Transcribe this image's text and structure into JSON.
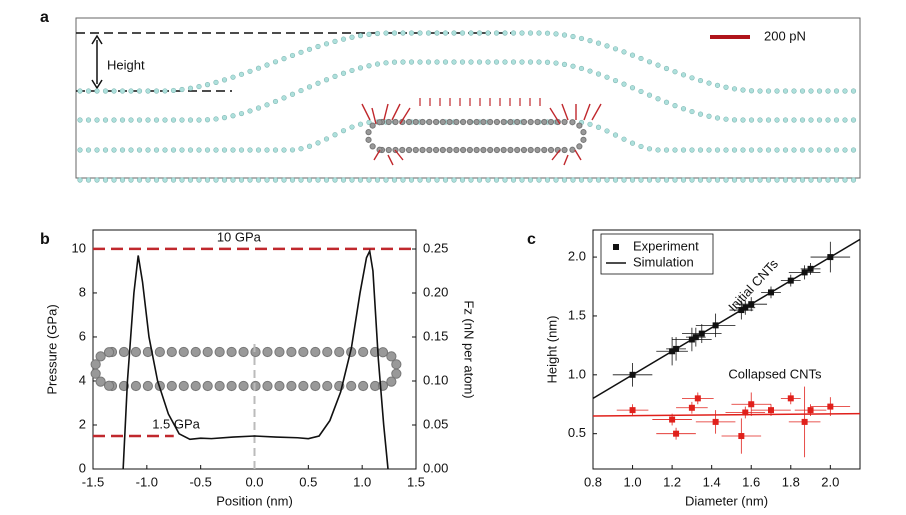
{
  "diagram": {
    "label": "a",
    "height_label": "Height",
    "scale_label": "200 pN"
  },
  "chart_data": [
    {
      "type": "line",
      "label": "b",
      "xlabel": "Position (nm)",
      "ylabel": "Pressure (GPa)",
      "y2label": "Fz (nN per atom)",
      "xlim": [
        -1.5,
        1.5
      ],
      "xticks": [
        -1.5,
        {
          "value": -1,
          "label": "-1.0"
        },
        -0.5,
        {
          "value": 0,
          "label": "0.0"
        },
        0.5,
        {
          "value": 1,
          "label": "1.0"
        },
        1.5
      ],
      "ylim": [
        0,
        10.86
      ],
      "yticks": [
        0,
        2,
        4,
        6,
        8,
        10
      ],
      "y2lim": [
        0,
        0.2716
      ],
      "y2ticks": [
        {
          "value": 0,
          "label": "0.00"
        },
        0.05,
        {
          "value": 0.1,
          "label": "0.10"
        },
        0.15,
        {
          "value": 0.2,
          "label": "0.20"
        },
        0.25
      ],
      "hlines": [
        {
          "value": 10,
          "label": "10 GPa"
        },
        {
          "value": 1.5,
          "label": "1.5 GPa"
        }
      ],
      "hline_color": "#c0282d",
      "vlines": [
        0
      ],
      "series": [
        {
          "color": "#111111",
          "x": [
            -1.22,
            -1.18,
            -1.12,
            -1.08,
            -1.04,
            -0.98,
            -0.9,
            -0.8,
            -0.7,
            -0.6,
            -0.5,
            -0.4,
            -0.2,
            0,
            0.2,
            0.4,
            0.5,
            0.6,
            0.7,
            0.8,
            0.9,
            0.98,
            1.04,
            1.07,
            1.1,
            1.15,
            1.2,
            1.24
          ],
          "values": [
            0,
            4,
            8,
            9.7,
            8.5,
            6,
            4,
            2.5,
            1.6,
            1.35,
            1.4,
            1.38,
            1.45,
            1.5,
            1.45,
            1.42,
            1.38,
            1.5,
            2.2,
            3.5,
            5.5,
            8,
            9.6,
            9.9,
            9,
            5,
            2,
            0
          ]
        }
      ]
    },
    {
      "type": "scatter",
      "label": "c",
      "xlabel": "Diameter (nm)",
      "ylabel": "Height (nm)",
      "xlim": [
        0.8,
        2.15
      ],
      "xticks": [
        0.8,
        {
          "value": 1,
          "label": "1.0"
        },
        1.2,
        1.4,
        1.6,
        1.8,
        {
          "value": 2,
          "label": "2.0"
        }
      ],
      "ylim": [
        0.2,
        2.23
      ],
      "yticks": [
        0.5,
        {
          "value": 1,
          "label": "1.0"
        },
        1.5,
        {
          "value": 2,
          "label": "2.0"
        }
      ],
      "legend": "upper left",
      "annotations": [
        "Initial CNTs",
        "Collapsed  CNTs"
      ],
      "series": [
        {
          "name": "Experiment",
          "kind": "scatter",
          "color": "#111111",
          "x": [
            1.0,
            1.2,
            1.22,
            1.3,
            1.32,
            1.35,
            1.42,
            1.55,
            1.57,
            1.6,
            1.7,
            1.8,
            1.87,
            1.9,
            2.0
          ],
          "values": [
            1.0,
            1.2,
            1.22,
            1.3,
            1.32,
            1.35,
            1.42,
            1.55,
            1.57,
            1.6,
            1.7,
            1.8,
            1.87,
            1.9,
            2.0
          ],
          "xerr": [
            0.1,
            0.08,
            0.05,
            0.1,
            0.05,
            0.1,
            0.1,
            0.06,
            0.05,
            0.08,
            0.05,
            0.05,
            0.08,
            0.05,
            0.1
          ],
          "yerr": [
            0.1,
            0.12,
            0.1,
            0.1,
            0.08,
            0.08,
            0.1,
            0.08,
            0.06,
            0.06,
            0.05,
            0.05,
            0.06,
            0.05,
            0.13
          ]
        },
        {
          "kind": "scatter",
          "color": "#e0201b",
          "x": [
            1.0,
            1.2,
            1.22,
            1.3,
            1.33,
            1.42,
            1.55,
            1.57,
            1.6,
            1.7,
            1.8,
            1.87,
            1.9,
            2.0
          ],
          "values": [
            0.7,
            0.62,
            0.5,
            0.72,
            0.8,
            0.6,
            0.48,
            0.68,
            0.75,
            0.7,
            0.8,
            0.6,
            0.7,
            0.73
          ],
          "xerr": [
            0.08,
            0.1,
            0.1,
            0.08,
            0.08,
            0.1,
            0.1,
            0.1,
            0.1,
            0.1,
            0.05,
            0.08,
            0.08,
            0.1
          ],
          "yerr": [
            0.05,
            0.05,
            0.05,
            0.05,
            0.05,
            0.1,
            0.15,
            0.05,
            0.1,
            0.05,
            0.05,
            0.3,
            0.05,
            0.08
          ]
        },
        {
          "name": "Simulation",
          "kind": "line",
          "color": "#111111",
          "x": [
            0.8,
            2.15
          ],
          "values": [
            0.8,
            2.15
          ]
        },
        {
          "kind": "line",
          "color": "#e0201b",
          "x": [
            0.8,
            2.15
          ],
          "values": [
            0.65,
            0.67
          ]
        }
      ]
    }
  ]
}
